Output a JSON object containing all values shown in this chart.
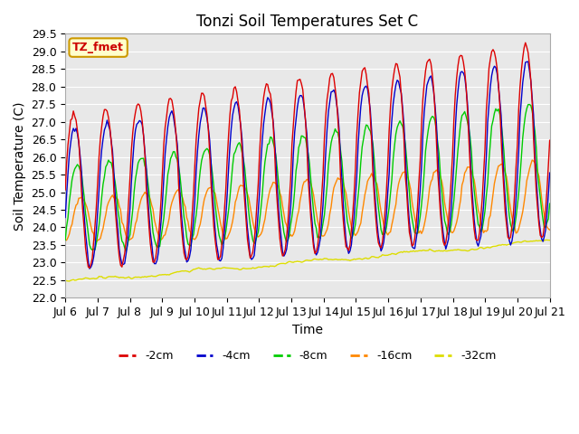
{
  "title": "Tonzi Soil Temperatures Set C",
  "xlabel": "Time",
  "ylabel": "Soil Temperature (C)",
  "ylim": [
    22.0,
    29.5
  ],
  "yticks": [
    22.0,
    22.5,
    23.0,
    23.5,
    24.0,
    24.5,
    25.0,
    25.5,
    26.0,
    26.5,
    27.0,
    27.5,
    28.0,
    28.5,
    29.0,
    29.5
  ],
  "xtick_labels": [
    "Jul 6",
    "Jul 7",
    "Jul 8",
    "Jul 9",
    "Jul 10",
    "Jul 11",
    "Jul 12",
    "Jul 13",
    "Jul 14",
    "Jul 15",
    "Jul 16",
    "Jul 17",
    "Jul 18",
    "Jul 19",
    "Jul 20",
    "Jul 21"
  ],
  "colors": {
    "-2cm": "#dd0000",
    "-4cm": "#0000cc",
    "-8cm": "#00cc00",
    "-16cm": "#ff8800",
    "-32cm": "#dddd00"
  },
  "legend_label": "TZ_fmet",
  "plot_bg": "#e8e8e8",
  "fig_bg": "#ffffff",
  "grid_color": "#ffffff",
  "title_fontsize": 12,
  "label_fontsize": 10,
  "tick_fontsize": 9
}
